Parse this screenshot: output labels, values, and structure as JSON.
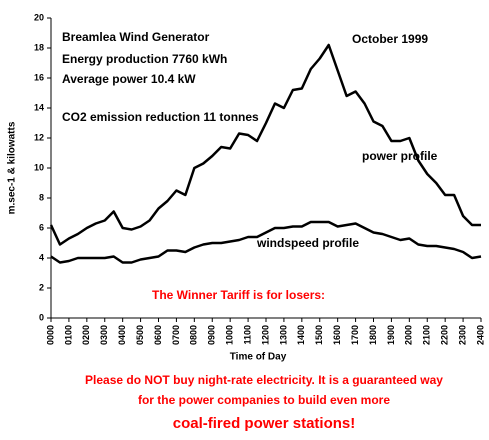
{
  "chart_data": {
    "type": "line",
    "y_label": "m.sec-1 & kilowatts",
    "x_label": "Time of Day",
    "annotations": [
      "Breamlea Wind Generator",
      "Energy production 7760 kWh",
      "Average power 10.4 kW",
      "CO2 emission reduction 11 tonnes",
      "October 1999",
      "The Winner Tariff is for losers:"
    ],
    "footer": [
      "Please do NOT buy night-rate electricity. It is a guaranteed way",
      "for the power companies to build even more",
      "coal-fired power stations!"
    ],
    "x": [
      0,
      0.5,
      1,
      1.5,
      2,
      2.5,
      3,
      3.5,
      4,
      4.5,
      5,
      5.5,
      6,
      6.5,
      7,
      7.5,
      8,
      8.5,
      9,
      9.5,
      10,
      10.5,
      11,
      11.5,
      12,
      12.5,
      13,
      13.5,
      14,
      14.5,
      15,
      15.5,
      16,
      16.5,
      17,
      17.5,
      18,
      18.5,
      19,
      19.5,
      20,
      20.5,
      21,
      21.5,
      22,
      22.5,
      23,
      23.5,
      24
    ],
    "series": [
      {
        "name": "power profile",
        "color": "#000000",
        "values": [
          6.2,
          4.9,
          5.3,
          5.6,
          6.0,
          6.3,
          6.5,
          7.1,
          6.0,
          5.9,
          6.1,
          6.5,
          7.3,
          7.8,
          8.5,
          8.2,
          10.0,
          10.3,
          10.8,
          11.4,
          11.3,
          12.3,
          12.2,
          11.8,
          13.0,
          14.3,
          14.0,
          15.2,
          15.3,
          16.6,
          17.3,
          18.2,
          16.5,
          14.8,
          15.1,
          14.3,
          13.1,
          12.8,
          11.8,
          11.8,
          12.0,
          10.5,
          9.6,
          9.0,
          8.2,
          8.2,
          6.8,
          6.2,
          6.2
        ]
      },
      {
        "name": "windspeed profile",
        "color": "#000000",
        "values": [
          4.1,
          3.7,
          3.8,
          4.0,
          4.0,
          4.0,
          4.0,
          4.1,
          3.7,
          3.7,
          3.9,
          4.0,
          4.1,
          4.5,
          4.5,
          4.4,
          4.7,
          4.9,
          5.0,
          5.0,
          5.1,
          5.2,
          5.4,
          5.4,
          5.7,
          6.0,
          6.0,
          6.1,
          6.1,
          6.4,
          6.4,
          6.4,
          6.1,
          6.2,
          6.3,
          6.0,
          5.7,
          5.6,
          5.4,
          5.2,
          5.3,
          4.9,
          4.8,
          4.8,
          4.7,
          4.6,
          4.4,
          4.0,
          4.1
        ]
      }
    ],
    "xlim": [
      0,
      24
    ],
    "xticks": [
      {
        "value": 0,
        "label": "0000"
      },
      {
        "value": 1,
        "label": "0100"
      },
      {
        "value": 2,
        "label": "0200"
      },
      {
        "value": 3,
        "label": "0300"
      },
      {
        "value": 4,
        "label": "0400"
      },
      {
        "value": 5,
        "label": "0500"
      },
      {
        "value": 6,
        "label": "0600"
      },
      {
        "value": 7,
        "label": "0700"
      },
      {
        "value": 8,
        "label": "0800"
      },
      {
        "value": 9,
        "label": "0900"
      },
      {
        "value": 10,
        "label": "1000"
      },
      {
        "value": 11,
        "label": "1100"
      },
      {
        "value": 12,
        "label": "1200"
      },
      {
        "value": 13,
        "label": "1300"
      },
      {
        "value": 14,
        "label": "1400"
      },
      {
        "value": 15,
        "label": "1500"
      },
      {
        "value": 16,
        "label": "1600"
      },
      {
        "value": 17,
        "label": "1700"
      },
      {
        "value": 18,
        "label": "1800"
      },
      {
        "value": 19,
        "label": "1900"
      },
      {
        "value": 20,
        "label": "2000"
      },
      {
        "value": 21,
        "label": "2100"
      },
      {
        "value": 22,
        "label": "2200"
      },
      {
        "value": 23,
        "label": "2300"
      },
      {
        "value": 24,
        "label": "2400"
      }
    ],
    "ylim": [
      0,
      20
    ],
    "yticks": [
      0,
      2,
      4,
      6,
      8,
      10,
      12,
      14,
      16,
      18,
      20
    ],
    "grid": false
  }
}
